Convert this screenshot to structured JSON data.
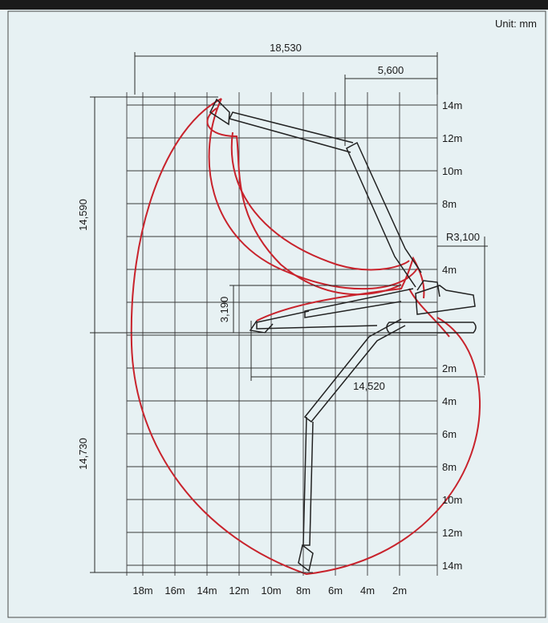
{
  "header": {
    "title_fragment": "",
    "unit_label": "Unit: mm"
  },
  "colors": {
    "panel_background": "#e7f1f3",
    "grid": "#3a3a3a",
    "envelope": "#c8232c",
    "machine_outline": "#222222",
    "header_strip": "#1a1a1a"
  },
  "dimensions": {
    "max_reach": "18,530",
    "top_offset": "5,600",
    "tail_swing_radius": "R3,100",
    "max_height": "14,590",
    "max_depth": "14,730",
    "boom_pin_height": "3,190",
    "min_front_radius": "14,520"
  },
  "axis_labels": {
    "right": [
      "14m",
      "12m",
      "10m",
      "8m",
      "4m",
      "2m",
      "4m",
      "6m",
      "8m",
      "10m",
      "12m",
      "14m"
    ],
    "bottom": [
      "18m",
      "16m",
      "14m",
      "12m",
      "10m",
      "8m",
      "6m",
      "4m",
      "2m"
    ]
  }
}
